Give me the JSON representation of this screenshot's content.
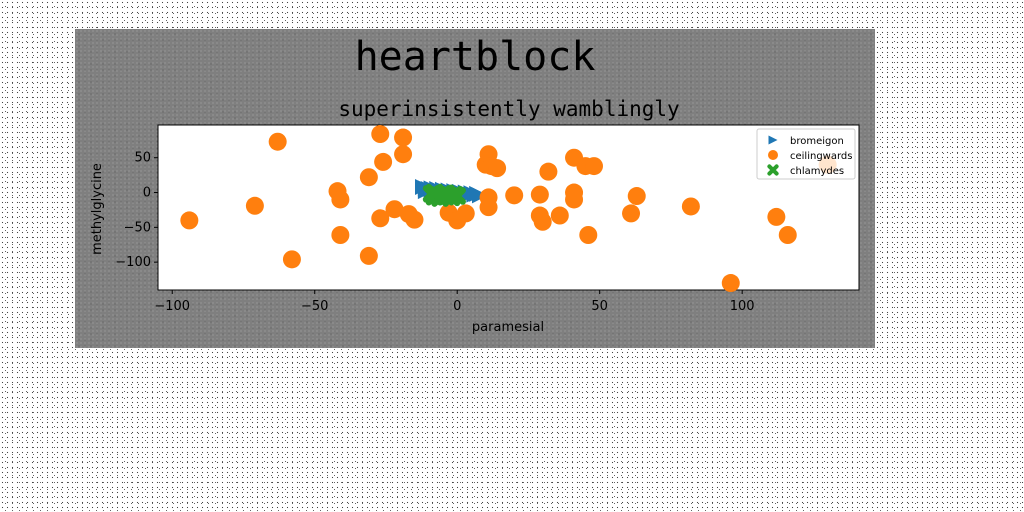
{
  "chart_data": {
    "type": "scatter",
    "suptitle": "heartblock",
    "title": "superinsistently wamblingly",
    "xlabel": "paramesial",
    "ylabel": "methylglycine",
    "xlim": [
      -105,
      141
    ],
    "ylim": [
      -140,
      97
    ],
    "xticks": [
      -100,
      -50,
      0,
      50,
      100
    ],
    "yticks": [
      50,
      0,
      -50,
      -100
    ],
    "grid": false,
    "legend_position": "top-right",
    "series": [
      {
        "name": "bromeigon",
        "marker": "triangle-right",
        "color": "#1f77b4",
        "points": [
          [
            -12,
            8
          ],
          [
            -11,
            6
          ],
          [
            -10,
            5
          ],
          [
            -9,
            6
          ],
          [
            -8,
            4
          ],
          [
            -7,
            5
          ],
          [
            -6,
            3
          ],
          [
            -5,
            4
          ],
          [
            -4,
            2
          ],
          [
            -3,
            3
          ],
          [
            -2,
            1
          ],
          [
            -1,
            2
          ],
          [
            0,
            0
          ],
          [
            1,
            1
          ],
          [
            2,
            -1
          ],
          [
            3,
            0
          ],
          [
            4,
            -2
          ],
          [
            5,
            -1
          ],
          [
            6,
            -3
          ],
          [
            7,
            -2
          ],
          [
            8,
            -4
          ],
          [
            -11,
            2
          ],
          [
            -9,
            0
          ],
          [
            -7,
            0
          ],
          [
            -5,
            -1
          ],
          [
            -3,
            -2
          ]
        ]
      },
      {
        "name": "ceilingwards",
        "marker": "circle",
        "color": "#ff7f0e",
        "points": [
          [
            -94,
            -40
          ],
          [
            -71,
            -19
          ],
          [
            -63,
            73
          ],
          [
            -58,
            -96
          ],
          [
            -42,
            2
          ],
          [
            -41,
            -10
          ],
          [
            -41,
            -61
          ],
          [
            -31,
            22
          ],
          [
            -31,
            -91
          ],
          [
            -27,
            84
          ],
          [
            -27,
            -37
          ],
          [
            -26,
            44
          ],
          [
            -22,
            -24
          ],
          [
            -19,
            79
          ],
          [
            -19,
            55
          ],
          [
            -17,
            -31
          ],
          [
            -15,
            -39
          ],
          [
            -3,
            -29
          ],
          [
            0,
            -40
          ],
          [
            3,
            -30
          ],
          [
            10,
            40
          ],
          [
            11,
            55
          ],
          [
            11,
            -7
          ],
          [
            11,
            -21
          ],
          [
            12,
            38
          ],
          [
            20,
            -4
          ],
          [
            29,
            -3
          ],
          [
            29,
            -33
          ],
          [
            30,
            -42
          ],
          [
            32,
            30
          ],
          [
            36,
            -33
          ],
          [
            41,
            50
          ],
          [
            41,
            0
          ],
          [
            41,
            -10
          ],
          [
            45,
            38
          ],
          [
            46,
            -61
          ],
          [
            48,
            38
          ],
          [
            61,
            -30
          ],
          [
            63,
            -5
          ],
          [
            82,
            -20
          ],
          [
            96,
            -130
          ],
          [
            112,
            -35
          ],
          [
            116,
            -61
          ],
          [
            130,
            40
          ],
          [
            14,
            35
          ]
        ]
      },
      {
        "name": "chlamydes",
        "marker": "x",
        "color": "#2ca02c",
        "points": [
          [
            -9,
            -2
          ],
          [
            -8,
            -6
          ],
          [
            -7,
            -3
          ],
          [
            -6,
            -8
          ],
          [
            -5,
            -2
          ],
          [
            -4,
            -6
          ],
          [
            -3,
            -4
          ],
          [
            -2,
            -7
          ],
          [
            -1,
            -3
          ],
          [
            0,
            -5
          ],
          [
            -8,
            0
          ],
          [
            -4,
            -1
          ]
        ]
      }
    ]
  }
}
